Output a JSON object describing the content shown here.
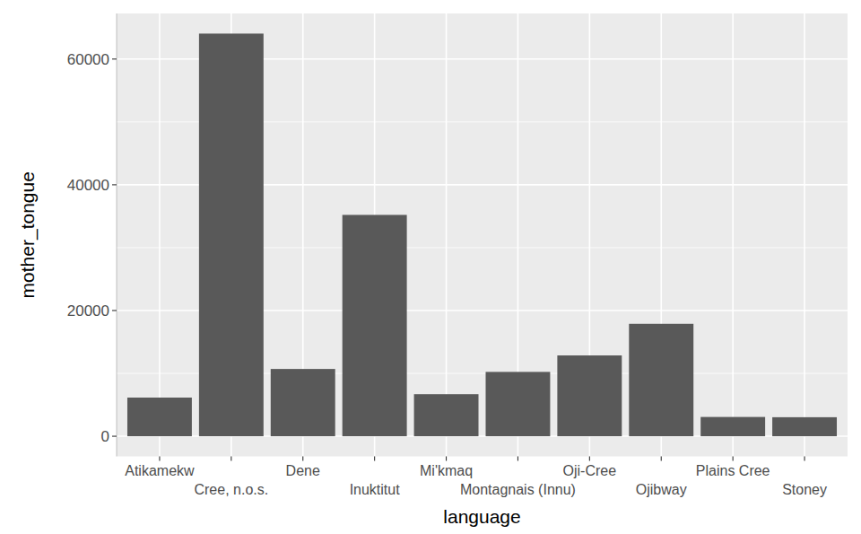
{
  "chart_data": {
    "type": "bar",
    "x_label": "language",
    "y_label": "mother_tongue",
    "categories": [
      "Atikamekw",
      "Cree, n.o.s.",
      "Dene",
      "Inuktitut",
      "Mi'kmaq",
      "Montagnais (Innu)",
      "Oji-Cree",
      "Ojibway",
      "Plains Cree",
      "Stoney"
    ],
    "values": [
      6150,
      64050,
      10700,
      35210,
      6690,
      10235,
      12855,
      17885,
      3065,
      3025
    ],
    "color": "#595959",
    "ylim": [
      -3202.5,
      67252.5
    ],
    "yticks": [
      0,
      20000,
      40000,
      60000
    ],
    "grid": true
  }
}
